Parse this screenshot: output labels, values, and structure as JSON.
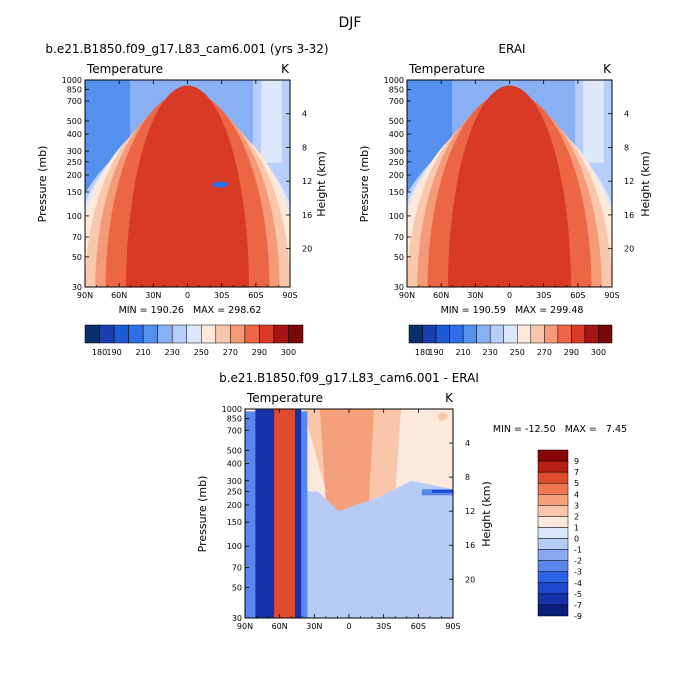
{
  "figure": {
    "title": "DJF",
    "panel_titles": [
      "b.e21.B1850.f09_g17.L83_cam6.001 (yrs 3-32)",
      "ERAI",
      "b.e21.B1850.f09_g17.L83_cam6.001 - ERAI"
    ],
    "variable": "Temperature",
    "units": "K",
    "ylabel": "Pressure (mb)",
    "y2label": "Height (km)",
    "stats": [
      "MIN = 190.26   MAX = 298.62",
      "MIN = 190.59   MAX = 299.48",
      "MIN = -12.50   MAX =   7.45"
    ]
  },
  "chart_data": [
    {
      "type": "heatmap",
      "title": "b.e21.B1850.f09_g17.L83_cam6.001 (yrs 3-32)",
      "subtitle": "Temperature",
      "units": "K",
      "xlabel": "",
      "ylabel": "Pressure (mb)",
      "y2label": "Height (km)",
      "x_ticks": [
        "90N",
        "60N",
        "30N",
        "0",
        "30S",
        "60S",
        "90S"
      ],
      "y_ticks": [
        30,
        50,
        70,
        100,
        150,
        200,
        250,
        300,
        400,
        500,
        700,
        850,
        1000
      ],
      "y2_ticks": [
        4,
        8,
        12,
        16,
        20
      ],
      "ylim": [
        1000,
        30
      ],
      "xlim": [
        90,
        -90
      ],
      "min": 190.26,
      "max": 298.62,
      "contour_levels": [
        180,
        190,
        200,
        210,
        220,
        230,
        240,
        250,
        260,
        270,
        280,
        290,
        300
      ],
      "colorbar_labels": [
        180,
        190,
        210,
        230,
        250,
        270,
        290,
        300
      ]
    },
    {
      "type": "heatmap",
      "title": "ERAI",
      "subtitle": "Temperature",
      "units": "K",
      "xlabel": "",
      "ylabel": "Pressure (mb)",
      "y2label": "Height (km)",
      "x_ticks": [
        "90N",
        "60N",
        "30N",
        "0",
        "30S",
        "60S",
        "90S"
      ],
      "y_ticks": [
        30,
        50,
        70,
        100,
        150,
        200,
        250,
        300,
        400,
        500,
        700,
        850,
        1000
      ],
      "y2_ticks": [
        4,
        8,
        12,
        16,
        20
      ],
      "ylim": [
        1000,
        30
      ],
      "xlim": [
        90,
        -90
      ],
      "min": 190.59,
      "max": 299.48,
      "contour_levels": [
        180,
        190,
        200,
        210,
        220,
        230,
        240,
        250,
        260,
        270,
        280,
        290,
        300
      ],
      "colorbar_labels": [
        180,
        190,
        210,
        230,
        250,
        270,
        290,
        300
      ]
    },
    {
      "type": "heatmap",
      "title": "b.e21.B1850.f09_g17.L83_cam6.001 - ERAI",
      "subtitle": "Temperature",
      "units": "K",
      "xlabel": "",
      "ylabel": "Pressure (mb)",
      "y2label": "Height (km)",
      "x_ticks": [
        "90N",
        "60N",
        "30N",
        "0",
        "30S",
        "60S",
        "90S"
      ],
      "y_ticks": [
        30,
        50,
        70,
        100,
        150,
        200,
        250,
        300,
        400,
        500,
        700,
        850,
        1000
      ],
      "y2_ticks": [
        4,
        8,
        12,
        16,
        20
      ],
      "ylim": [
        1000,
        30
      ],
      "xlim": [
        90,
        -90
      ],
      "min": -12.5,
      "max": 7.45,
      "contour_levels": [
        -9,
        -7,
        -5,
        -4,
        -3,
        -2,
        -1,
        0,
        1,
        2,
        3,
        4,
        5,
        7,
        9
      ],
      "colorbar_labels": [
        9,
        7,
        5,
        4,
        3,
        2,
        1,
        0,
        -1,
        -2,
        -3,
        -4,
        -5,
        -7,
        -9
      ]
    }
  ],
  "colors": {
    "abs_scale": [
      "#08306b",
      "#1a3fae",
      "#1f5ad6",
      "#2e6fe8",
      "#5590ef",
      "#89b0f4",
      "#b7cff8",
      "#dde8fb",
      "#fde8da",
      "#f9c7ac",
      "#f49a77",
      "#ec6545",
      "#d93a26",
      "#a81313",
      "#7a0707"
    ],
    "diff_scale": [
      "#0a1f7a",
      "#1632a8",
      "#1f48d1",
      "#2d62e6",
      "#5a86ee",
      "#8aa9f3",
      "#b7cbf7",
      "#dbe7fb",
      "#fde9db",
      "#f9c6a9",
      "#f4a07a",
      "#ee7752",
      "#e04d2e",
      "#b82014",
      "#880606"
    ]
  }
}
